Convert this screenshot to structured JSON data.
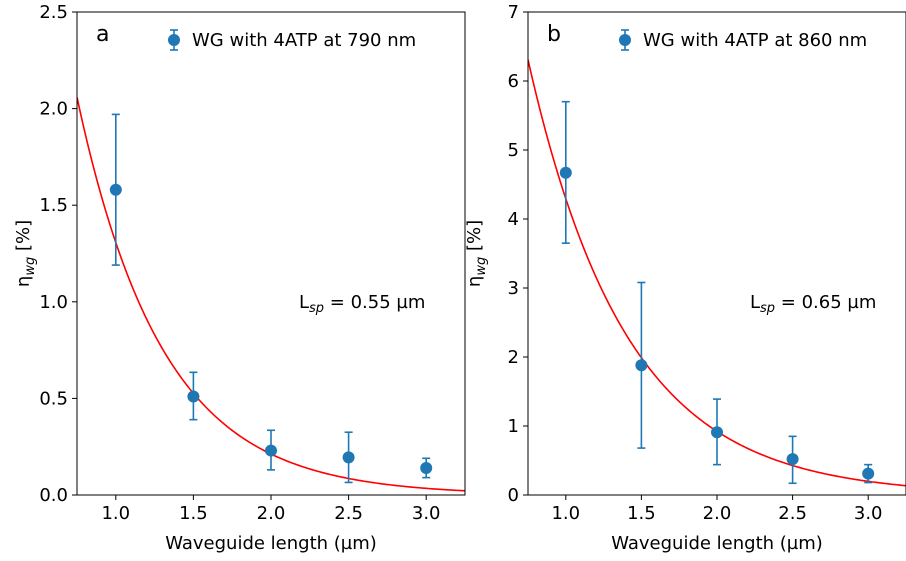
{
  "chart_data": [
    {
      "type": "scatter",
      "panel_label": "a",
      "xlabel": "Waveguide length (µm)",
      "ylabel": {
        "main": "η",
        "sub": "wg",
        "unit": " [%]"
      },
      "xlim": [
        0.75,
        3.25
      ],
      "ylim": [
        0,
        2.5
      ],
      "xticks": [
        {
          "v": 1.0,
          "label": "1.0"
        },
        {
          "v": 1.5,
          "label": "1.5"
        },
        {
          "v": 2.0,
          "label": "2.0"
        },
        {
          "v": 2.5,
          "label": "2.5"
        },
        {
          "v": 3.0,
          "label": "3.0"
        }
      ],
      "yticks": [
        {
          "v": 0.0,
          "label": "0.0"
        },
        {
          "v": 0.5,
          "label": "0.5"
        },
        {
          "v": 1.0,
          "label": "1.0"
        },
        {
          "v": 1.5,
          "label": "1.5"
        },
        {
          "v": 2.0,
          "label": "2.0"
        },
        {
          "v": 2.5,
          "label": "2.5"
        }
      ],
      "series": [
        {
          "name": "WG with 4ATP at 790 nm",
          "color": "#1f77b4",
          "x": [
            1.0,
            1.5,
            2.0,
            2.5,
            3.0
          ],
          "y": [
            1.58,
            0.51,
            0.23,
            0.195,
            0.14
          ],
          "err_low": [
            1.19,
            0.39,
            0.13,
            0.065,
            0.09
          ],
          "err_high": [
            1.97,
            0.635,
            0.335,
            0.325,
            0.19
          ]
        }
      ],
      "fit": {
        "color": "#ff0000",
        "A": 8.05,
        "L": 0.55
      },
      "annotation": {
        "main": "L",
        "sub": "sp",
        "rest": " = 0.55 µm"
      },
      "legend": "top-right"
    },
    {
      "type": "scatter",
      "panel_label": "b",
      "xlabel": "Waveguide length (µm)",
      "ylabel": {
        "main": "η",
        "sub": "wg",
        "unit": " [%]"
      },
      "xlim": [
        0.75,
        3.25
      ],
      "ylim": [
        0,
        7
      ],
      "xticks": [
        {
          "v": 1.0,
          "label": "1.0"
        },
        {
          "v": 1.5,
          "label": "1.5"
        },
        {
          "v": 2.0,
          "label": "2.0"
        },
        {
          "v": 2.5,
          "label": "2.5"
        },
        {
          "v": 3.0,
          "label": "3.0"
        }
      ],
      "yticks": [
        {
          "v": 0,
          "label": "0"
        },
        {
          "v": 1,
          "label": "1"
        },
        {
          "v": 2,
          "label": "2"
        },
        {
          "v": 3,
          "label": "3"
        },
        {
          "v": 4,
          "label": "4"
        },
        {
          "v": 5,
          "label": "5"
        },
        {
          "v": 6,
          "label": "6"
        },
        {
          "v": 7,
          "label": "7"
        }
      ],
      "series": [
        {
          "name": "WG with 4ATP at 860 nm",
          "color": "#1f77b4",
          "x": [
            1.0,
            1.5,
            2.0,
            2.5,
            3.0
          ],
          "y": [
            4.67,
            1.88,
            0.91,
            0.52,
            0.31
          ],
          "err_low": [
            3.65,
            0.68,
            0.44,
            0.17,
            0.18
          ],
          "err_high": [
            5.7,
            3.08,
            1.39,
            0.85,
            0.44
          ]
        }
      ],
      "fit": {
        "color": "#ff0000",
        "A": 20.0,
        "L": 0.65
      },
      "annotation": {
        "main": "L",
        "sub": "sp",
        "rest": " = 0.65 µm"
      },
      "legend": "top-right"
    }
  ]
}
